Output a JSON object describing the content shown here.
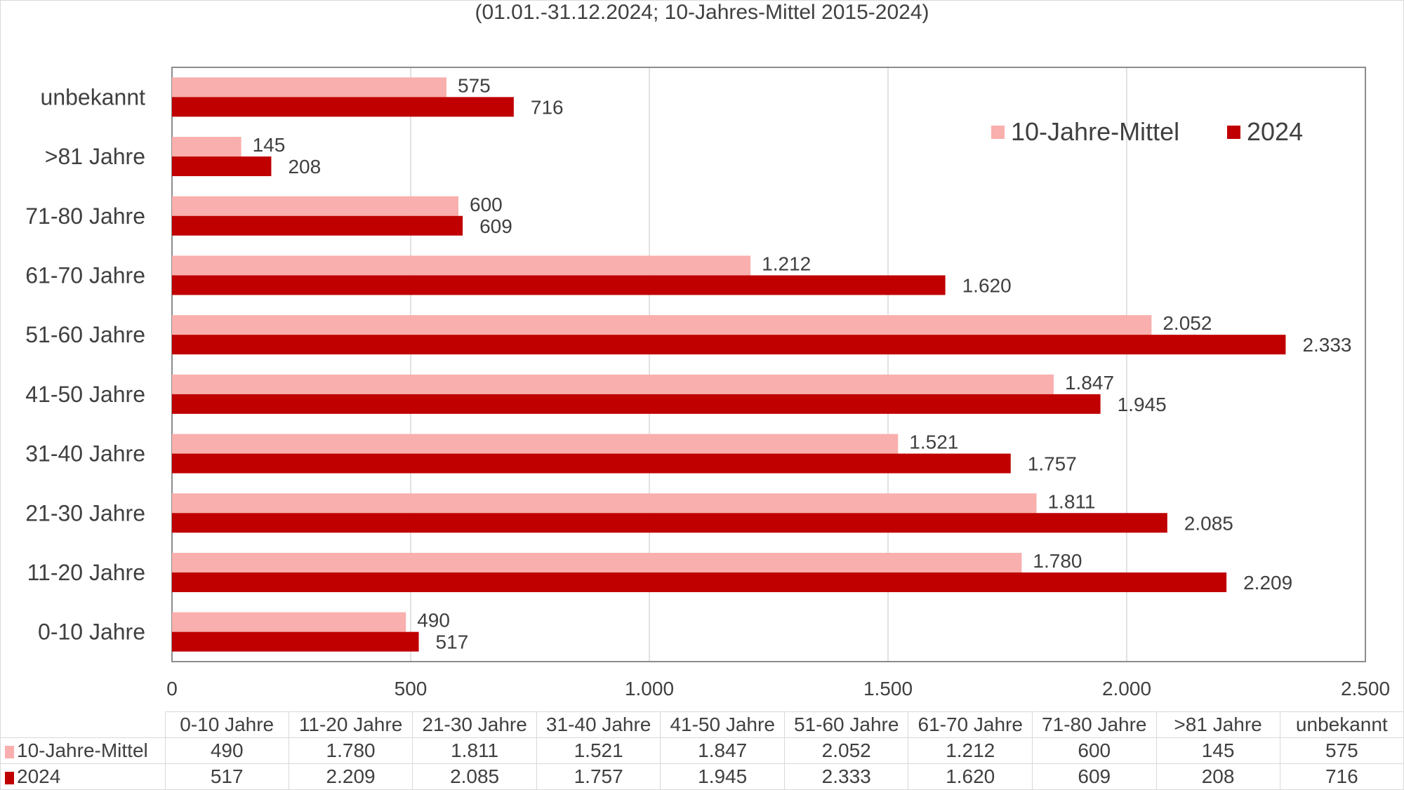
{
  "chart_data": {
    "type": "bar",
    "orientation": "horizontal",
    "subtitle": "(01.01.-31.12.2024; 10-Jahres-Mittel 2015-2024)",
    "categories": [
      "0-10 Jahre",
      "11-20 Jahre",
      "21-30 Jahre",
      "31-40 Jahre",
      "41-50 Jahre",
      "51-60 Jahre",
      "61-70 Jahre",
      "71-80 Jahre",
      ">81 Jahre",
      "unbekannt"
    ],
    "series": [
      {
        "name": "10-Jahre-Mittel",
        "color": "#f9afad",
        "values": [
          490,
          1780,
          1811,
          1521,
          1847,
          2052,
          1212,
          600,
          145,
          575
        ],
        "labels": [
          "490",
          "1.780",
          "1.811",
          "1.521",
          "1.847",
          "2.052",
          "1.212",
          "600",
          "145",
          "575"
        ]
      },
      {
        "name": "2024",
        "color": "#c00000",
        "values": [
          517,
          2209,
          2085,
          1757,
          1945,
          2333,
          1620,
          609,
          208,
          716
        ],
        "labels": [
          "517",
          "2.209",
          "2.085",
          "1.757",
          "1.945",
          "2.333",
          "1.620",
          "609",
          "208",
          "716"
        ]
      }
    ],
    "xlim": [
      0,
      2500
    ],
    "xticks": [
      0,
      500,
      1000,
      1500,
      2000,
      2500
    ],
    "xtick_labels": [
      "0",
      "500",
      "1.000",
      "1.500",
      "2.000",
      "2.500"
    ],
    "grid": true,
    "legend": "top-right",
    "data_table": true
  }
}
